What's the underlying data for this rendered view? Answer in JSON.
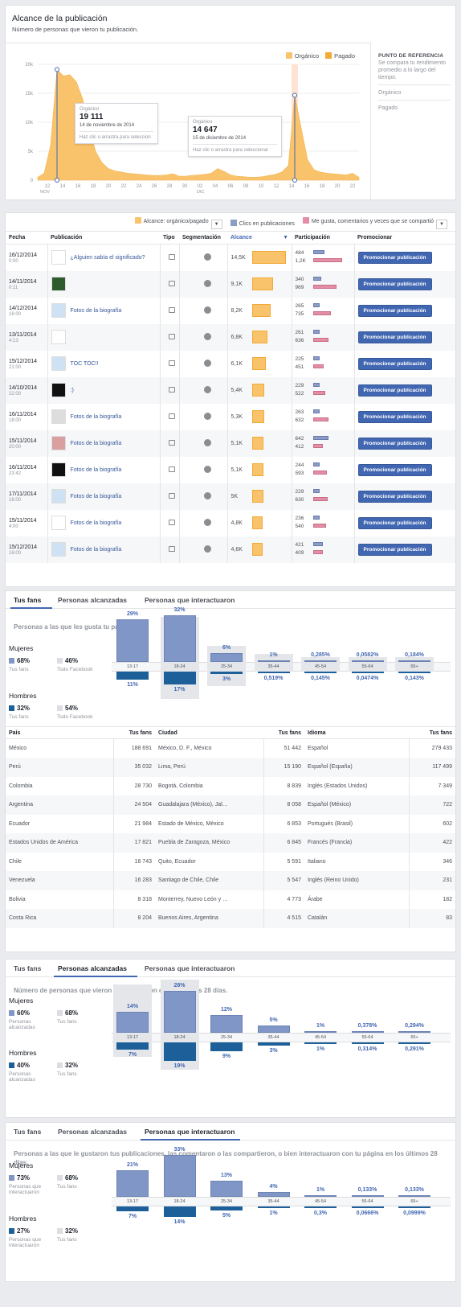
{
  "reach": {
    "title": "Alcance de la publicación",
    "subtitle": "Número de personas que vieron tu publicación.",
    "legend": [
      {
        "label": "Orgánico",
        "color": "#f9c36c"
      },
      {
        "label": "Pagado",
        "color": "#f2a935"
      }
    ],
    "benchmark": {
      "title": "PUNTO DE REFERENCIA",
      "desc": "Se compara tu rendimiento promedio a lo largo del tiempo.",
      "items": [
        "Orgánico",
        "Pagado"
      ]
    },
    "tooltip1": {
      "label": "Orgánico",
      "value": "19 111",
      "date": "14 de noviembre de 2014",
      "hint": "Haz clic o arrastra para seleccion"
    },
    "tooltip2": {
      "label": "Orgánico",
      "value": "14 647",
      "date": "15 de diciembre de 2014",
      "hint": "Haz clic o arrastra para seleccionar"
    },
    "chart_data": {
      "type": "area",
      "ylim": [
        0,
        20000
      ],
      "yticks": [
        "20k",
        "15k",
        "10k",
        "5k",
        "0"
      ],
      "xticks": [
        "12",
        "14",
        "16",
        "18",
        "20",
        "22",
        "24",
        "26",
        "28",
        "30",
        "02",
        "04",
        "06",
        "08",
        "10",
        "12",
        "14",
        "16",
        "18",
        "20",
        "22"
      ],
      "month_labels": [
        "NOV",
        "DIC"
      ],
      "series": [
        {
          "name": "Orgánico",
          "values": [
            500,
            1200,
            6000,
            19111,
            18000,
            18200,
            17000,
            14000,
            9000,
            5000,
            3000,
            2000,
            1600,
            1400,
            1200,
            1100,
            1000,
            900,
            800,
            800,
            900,
            1100,
            700,
            700,
            800,
            900,
            1000,
            1200,
            2000,
            1500,
            900,
            700,
            600,
            500,
            500,
            600,
            800,
            1000,
            1400,
            2500,
            14647,
            9000,
            3500,
            1800,
            1400,
            1200,
            1100,
            1000,
            900,
            1200,
            500
          ]
        }
      ]
    }
  },
  "posts": {
    "filters": {
      "reach": "Alcance: orgánico/pagado",
      "clicks": "Clics en publicaciones",
      "likes": "Me gusta, comentarios y veces que se compartió"
    },
    "headers": [
      "Fecha",
      "Publicación",
      "Tipo",
      "Segmentación",
      "Alcance",
      "Participación",
      "Promocionar"
    ],
    "promote_label": "Promocionar publicación",
    "rows": [
      {
        "date": "16/12/2014",
        "time": "0:00",
        "text": "¿Alguien sabía el significado?",
        "reach": "14,5K",
        "reach_val": 14.5,
        "eng1": "484",
        "eng2": "1,2K",
        "e1": 484,
        "e2": 1200
      },
      {
        "date": "14/11/2014",
        "time": "0:11",
        "text": "",
        "reach": "9,1K",
        "reach_val": 9.1,
        "eng1": "340",
        "eng2": "969",
        "e1": 340,
        "e2": 969
      },
      {
        "date": "14/12/2014",
        "time": "16:00",
        "text": "Fotos de la biografía",
        "reach": "8,2K",
        "reach_val": 8.2,
        "eng1": "265",
        "eng2": "735",
        "e1": 265,
        "e2": 735
      },
      {
        "date": "13/11/2014",
        "time": "4:13",
        "text": "",
        "reach": "6,8K",
        "reach_val": 6.8,
        "eng1": "261",
        "eng2": "636",
        "e1": 261,
        "e2": 636
      },
      {
        "date": "15/12/2014",
        "time": "21:00",
        "text": "TOC TOC!!",
        "reach": "6,1K",
        "reach_val": 6.1,
        "eng1": "225",
        "eng2": "451",
        "e1": 225,
        "e2": 451
      },
      {
        "date": "14/10/2014",
        "time": "22:00",
        "text": ":)",
        "reach": "5,4K",
        "reach_val": 5.4,
        "eng1": "229",
        "eng2": "522",
        "e1": 229,
        "e2": 522
      },
      {
        "date": "16/11/2014",
        "time": "18:00",
        "text": "Fotos de la biografía",
        "reach": "5,3K",
        "reach_val": 5.3,
        "eng1": "263",
        "eng2": "632",
        "e1": 263,
        "e2": 632
      },
      {
        "date": "15/11/2014",
        "time": "20:00",
        "text": "Fotos de la biografía",
        "reach": "5,1K",
        "reach_val": 5.1,
        "eng1": "642",
        "eng2": "412",
        "e1": 642,
        "e2": 412
      },
      {
        "date": "16/11/2014",
        "time": "23:42",
        "text": "Fotos de la biografía",
        "reach": "5,1K",
        "reach_val": 5.1,
        "eng1": "244",
        "eng2": "593",
        "e1": 244,
        "e2": 593
      },
      {
        "date": "17/11/2014",
        "time": "16:00",
        "text": "Fotos de la biografía",
        "reach": "5K",
        "reach_val": 5.0,
        "eng1": "229",
        "eng2": "630",
        "e1": 229,
        "e2": 630
      },
      {
        "date": "15/11/2014",
        "time": "4:00",
        "text": "Fotos de la biografía",
        "reach": "4,8K",
        "reach_val": 4.8,
        "eng1": "236",
        "eng2": "540",
        "e1": 236,
        "e2": 540
      },
      {
        "date": "15/12/2014",
        "time": "16:00",
        "text": "Fotos de la biografía",
        "reach": "4,6K",
        "reach_val": 4.6,
        "eng1": "421",
        "eng2": "409",
        "e1": 421,
        "e2": 409
      }
    ]
  },
  "tabs": [
    "Tus fans",
    "Personas alcanzadas",
    "Personas que interactuaron"
  ],
  "ages": [
    "13-17",
    "18-24",
    "25-34",
    "35-44",
    "45-54",
    "55-64",
    "65+"
  ],
  "fans": {
    "heading": "Personas a las que les gusta tu página",
    "women": {
      "label": "Mujeres",
      "pct": "68%",
      "pct_label": "Tus fans",
      "cmp": "46%",
      "cmp_label": "Todo Facebook"
    },
    "men": {
      "label": "Hombres",
      "pct": "32%",
      "pct_label": "Tus fans",
      "cmp": "54%",
      "cmp_label": "Todo Facebook"
    },
    "women_labels": [
      "29%",
      "32%",
      "6%",
      "1%",
      "0,285%",
      "0,0582%",
      "0,184%"
    ],
    "men_labels": [
      "11%",
      "17%",
      "3%",
      "0,519%",
      "0,145%",
      "0,0474%",
      "0,143%"
    ],
    "chart_data": {
      "type": "bar",
      "categories": [
        "13-17",
        "18-24",
        "25-34",
        "35-44",
        "45-54",
        "55-64",
        "65+"
      ],
      "series": [
        {
          "name": "Mujeres",
          "values": [
            29,
            32,
            6,
            1,
            0.285,
            0.0582,
            0.184
          ]
        },
        {
          "name": "Hombres",
          "values": [
            11,
            17,
            3,
            0.519,
            0.145,
            0.0474,
            0.143
          ]
        }
      ]
    },
    "countries": {
      "h1": "País",
      "h2": "Tus fans",
      "rows": [
        [
          "México",
          "188 691"
        ],
        [
          "Perú",
          "35 032"
        ],
        [
          "Colombia",
          "28 730"
        ],
        [
          "Argentina",
          "24 504"
        ],
        [
          "Ecuador",
          "21 984"
        ],
        [
          "Estados Unidos de América",
          "17 821"
        ],
        [
          "Chile",
          "16 743"
        ],
        [
          "Venezuela",
          "16 283"
        ],
        [
          "Bolivia",
          "8 318"
        ],
        [
          "Costa Rica",
          "8 204"
        ]
      ]
    },
    "cities": {
      "h1": "Ciudad",
      "h2": "Tus fans",
      "rows": [
        [
          "México, D. F., México",
          "51 442"
        ],
        [
          "Lima, Perú",
          "15 190"
        ],
        [
          "Bogotá, Colombia",
          "8 839"
        ],
        [
          "Guadalajara (México), Jal…",
          "8 058"
        ],
        [
          "Estado de México, México",
          "6 853"
        ],
        [
          "Puebla de Zaragoza, México",
          "6 845"
        ],
        [
          "Quito, Ecuador",
          "5 591"
        ],
        [
          "Santiago de Chile, Chile",
          "5 547"
        ],
        [
          "Monterrey, Nuevo León y …",
          "4 773"
        ],
        [
          "Buenos Aires, Argentina",
          "4 515"
        ]
      ]
    },
    "languages": {
      "h1": "Idioma",
      "h2": "Tus fans",
      "rows": [
        [
          "Español",
          "279 433"
        ],
        [
          "Español (España)",
          "117 499"
        ],
        [
          "Inglés (Estados Unidos)",
          "7 349"
        ],
        [
          "Español (México)",
          "722"
        ],
        [
          "Portugués (Brasil)",
          "602"
        ],
        [
          "Francés (Francia)",
          "422"
        ],
        [
          "Italiano",
          "346"
        ],
        [
          "Inglés (Reino Unido)",
          "231"
        ],
        [
          "Árabe",
          "182"
        ],
        [
          "Catalán",
          "83"
        ]
      ]
    }
  },
  "reached": {
    "heading": "Número de personas que vieron tu publicación en los últimos 28 días.",
    "women": {
      "label": "Mujeres",
      "pct": "60%",
      "pct_label": "Personas alcanzadas",
      "cmp": "68%",
      "cmp_label": "Tus fans"
    },
    "men": {
      "label": "Hombres",
      "pct": "40%",
      "pct_label": "Personas alcanzadas",
      "cmp": "32%",
      "cmp_label": "Tus fans"
    },
    "women_labels": [
      "14%",
      "28%",
      "12%",
      "5%",
      "1%",
      "0,378%",
      "0,294%"
    ],
    "men_labels": [
      "7%",
      "19%",
      "9%",
      "3%",
      "1%",
      "0,314%",
      "0,291%"
    ],
    "chart_data": {
      "type": "bar",
      "categories": [
        "13-17",
        "18-24",
        "25-34",
        "35-44",
        "45-54",
        "55-64",
        "65+"
      ],
      "series": [
        {
          "name": "Mujeres",
          "values": [
            14,
            28,
            12,
            5,
            1,
            0.378,
            0.294
          ]
        },
        {
          "name": "Hombres",
          "values": [
            7,
            19,
            9,
            3,
            1,
            0.314,
            0.291
          ]
        }
      ]
    }
  },
  "engaged": {
    "heading": "Personas a las que le gustaron tus publicaciones, las comentaron o las compartieron, o bien interactuaron con tu página en los últimos 28 días.",
    "women": {
      "label": "Mujeres",
      "pct": "73%",
      "pct_label": "Personas que interactuaron",
      "cmp": "68%",
      "cmp_label": "Tus fans"
    },
    "men": {
      "label": "Hombres",
      "pct": "27%",
      "pct_label": "Personas que interactuaron",
      "cmp": "32%",
      "cmp_label": "Tus fans"
    },
    "women_labels": [
      "21%",
      "33%",
      "13%",
      "4%",
      "1%",
      "0,133%",
      "0,133%"
    ],
    "men_labels": [
      "7%",
      "14%",
      "5%",
      "1%",
      "0,3%",
      "0,0666%",
      "0,0999%"
    ],
    "chart_data": {
      "type": "bar",
      "categories": [
        "13-17",
        "18-24",
        "25-34",
        "35-44",
        "45-54",
        "55-64",
        "65+"
      ],
      "series": [
        {
          "name": "Mujeres",
          "values": [
            21,
            33,
            13,
            4,
            1,
            0.133,
            0.133
          ]
        },
        {
          "name": "Hombres",
          "values": [
            7,
            14,
            5,
            1,
            0.3,
            0.0666,
            0.0999
          ]
        }
      ]
    }
  },
  "colors": {
    "accent": "#4267b2",
    "female": "#7f96c6",
    "male": "#1c5f99",
    "organic": "#f9c36c",
    "paid": "#f2a935",
    "clicks": "#8b9dc3",
    "likes": "#e48ea6"
  }
}
